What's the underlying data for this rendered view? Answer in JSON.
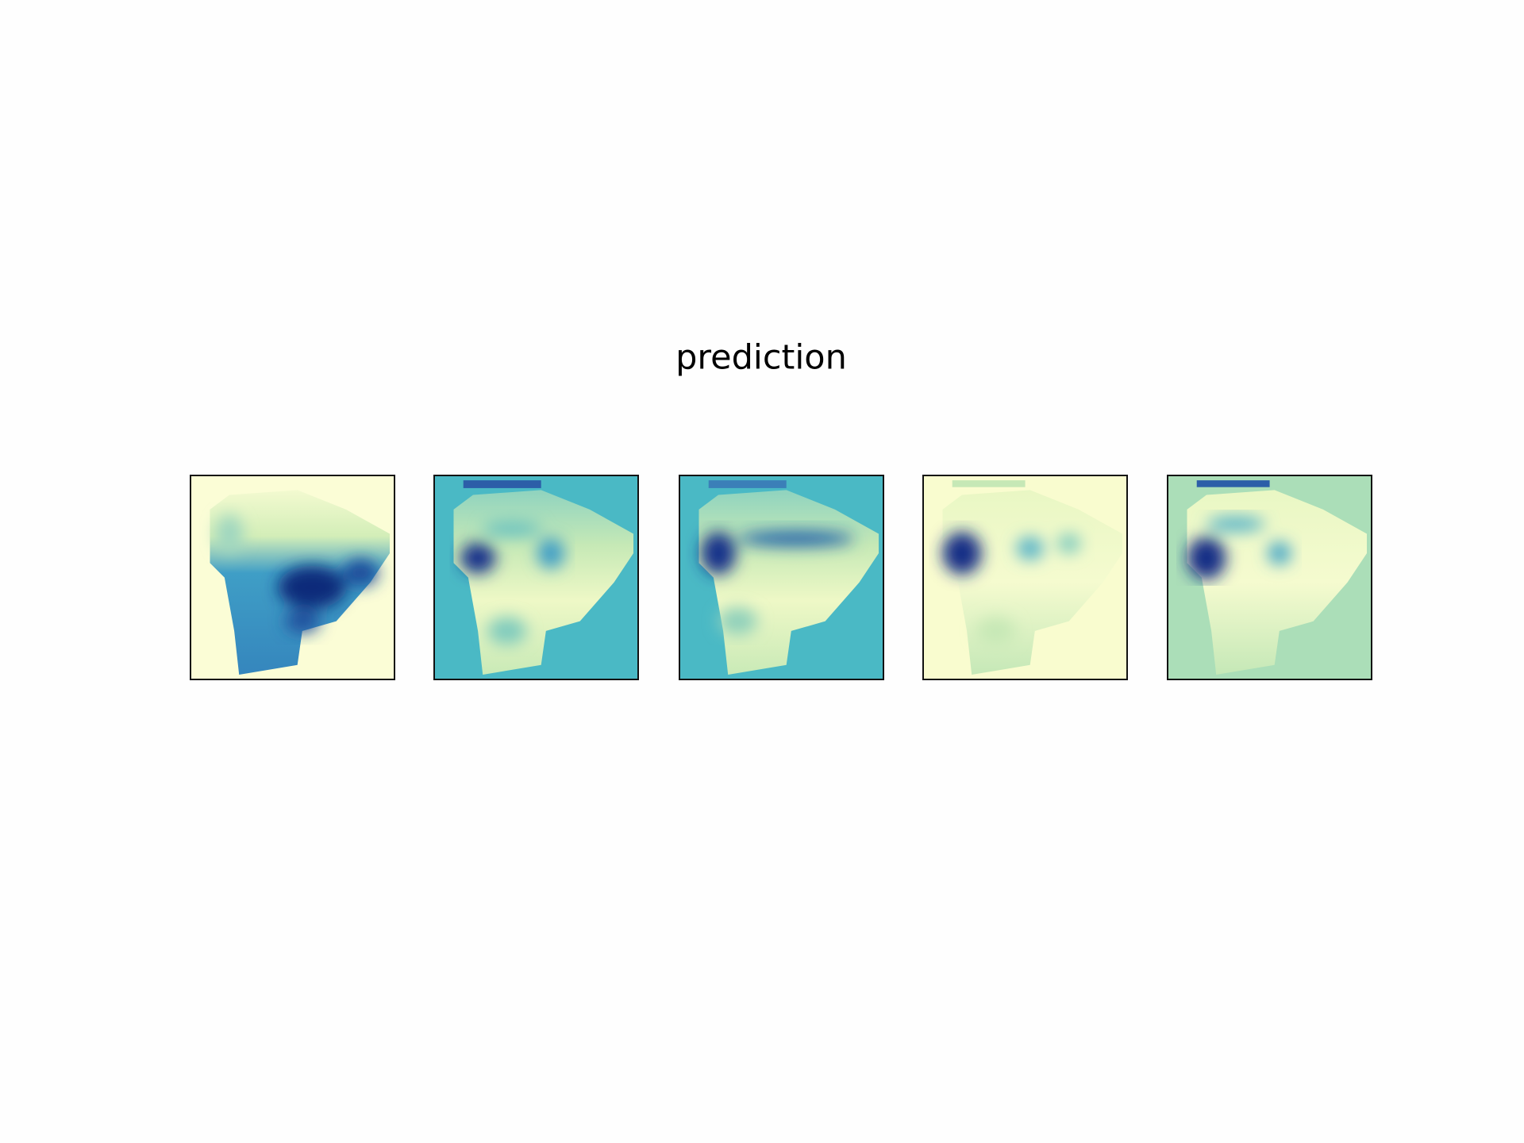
{
  "title": "prediction"
}
